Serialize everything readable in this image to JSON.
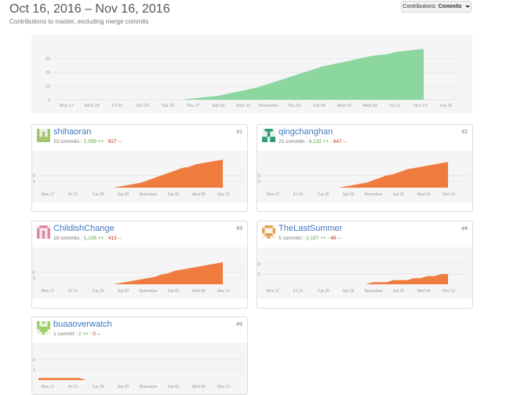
{
  "header": {
    "title": "Oct 16, 2016 – Nov 16, 2016",
    "subtitle": "Contributions to master, excluding merge commits",
    "contributions_label": "Contributions:",
    "contributions_value": "Commits"
  },
  "colors": {
    "main_area": "#8cd69f",
    "user_area": "#f07b3f",
    "link": "#4078c0",
    "additions": "#55a532",
    "deletions": "#bd2c00"
  },
  "main_chart": {
    "y_ticks": [
      "0",
      "10",
      "20",
      "30"
    ],
    "x_ticks": [
      "Mon 17",
      "Wed 19",
      "Fri 21",
      "Oct 23",
      "Tue 25",
      "Thu 27",
      "Sat 29",
      "Mon 31",
      "November",
      "Thu 03",
      "Sat 05",
      "Mon 07",
      "Wed 09",
      "Fri 11",
      "Nov 13",
      "Tue 15"
    ]
  },
  "card_chart": {
    "y_ticks": [
      "5",
      "10"
    ],
    "x_ticks": [
      "Mon 17",
      "Fri 21",
      "Tue 25",
      "Sat 29",
      "November",
      "Sat 05",
      "Wed 09",
      "Nov 13"
    ]
  },
  "contributors": [
    {
      "name": "shihaoran",
      "commits": "23 commits",
      "additions": "2,059 ++",
      "deletions": "927 --",
      "rank": "#1",
      "avatar": "identicon-green"
    },
    {
      "name": "qingchanghan",
      "commits": "21 commits",
      "additions": "6,132 ++",
      "deletions": "647 --",
      "rank": "#2",
      "avatar": "identicon-teal"
    },
    {
      "name": "ChildishChange",
      "commits": "18 commits",
      "additions": "1,106 ++",
      "deletions": "413 --",
      "rank": "#3",
      "avatar": "identicon-pink"
    },
    {
      "name": "TheLastSummer",
      "commits": "5 commits",
      "additions": "2,197 ++",
      "deletions": "46 --",
      "rank": "#4",
      "avatar": "identicon-orange"
    },
    {
      "name": "buaaoverwatch",
      "commits": "1 commit",
      "additions": "2 ++",
      "deletions": "0 --",
      "rank": "#5",
      "avatar": "identicon-lightgreen"
    }
  ],
  "chart_data": [
    {
      "type": "area",
      "title": "",
      "series": [
        {
          "values": [
            0,
            0,
            0,
            0,
            0,
            0,
            0,
            0,
            0,
            0,
            0,
            1,
            2,
            3,
            5,
            7,
            9,
            12,
            15,
            18,
            21,
            24,
            26,
            28,
            30,
            32,
            33,
            35,
            36,
            37
          ]
        }
      ],
      "ylim": [
        0,
        40
      ],
      "grid": true
    },
    {
      "type": "area",
      "series": [
        {
          "name": "shihaoran",
          "values": [
            0,
            0,
            0,
            0,
            0,
            0,
            0,
            0,
            0,
            0,
            0,
            0,
            1,
            2,
            3,
            4,
            6,
            8,
            10,
            12,
            14,
            16,
            17,
            19,
            20,
            21,
            22,
            23
          ]
        }
      ],
      "ylim": [
        0,
        25
      ]
    },
    {
      "type": "area",
      "series": [
        {
          "name": "qingchanghan",
          "values": [
            0,
            0,
            0,
            0,
            0,
            0,
            0,
            0,
            0,
            0,
            0,
            0,
            1,
            2,
            3,
            4,
            6,
            8,
            10,
            11,
            13,
            15,
            16,
            17,
            18,
            19,
            20,
            21
          ]
        }
      ],
      "ylim": [
        0,
        25
      ]
    },
    {
      "type": "area",
      "series": [
        {
          "name": "ChildishChange",
          "values": [
            0,
            0,
            0,
            0,
            0,
            0,
            0,
            0,
            0,
            0,
            0,
            0,
            1,
            2,
            3,
            4,
            5,
            6,
            8,
            9,
            11,
            12,
            13,
            14,
            15,
            16,
            17,
            18
          ]
        }
      ],
      "ylim": [
        0,
        25
      ]
    },
    {
      "type": "area",
      "series": [
        {
          "name": "TheLastSummer",
          "values": [
            0,
            0,
            0,
            0,
            0,
            0,
            0,
            0,
            0,
            0,
            0,
            0,
            0,
            0,
            0,
            0,
            1,
            1,
            1,
            2,
            2,
            2,
            3,
            3,
            4,
            4,
            5,
            5
          ]
        }
      ],
      "ylim": [
        0,
        15
      ]
    },
    {
      "type": "area",
      "series": [
        {
          "name": "buaaoverwatch",
          "values": [
            1,
            1,
            1,
            1,
            1,
            1,
            1,
            0,
            0,
            0,
            0,
            0,
            0,
            0,
            0,
            0,
            0,
            0,
            0,
            0,
            0,
            0,
            0,
            0,
            0,
            0,
            0,
            0
          ]
        }
      ],
      "ylim": [
        0,
        15
      ]
    }
  ]
}
